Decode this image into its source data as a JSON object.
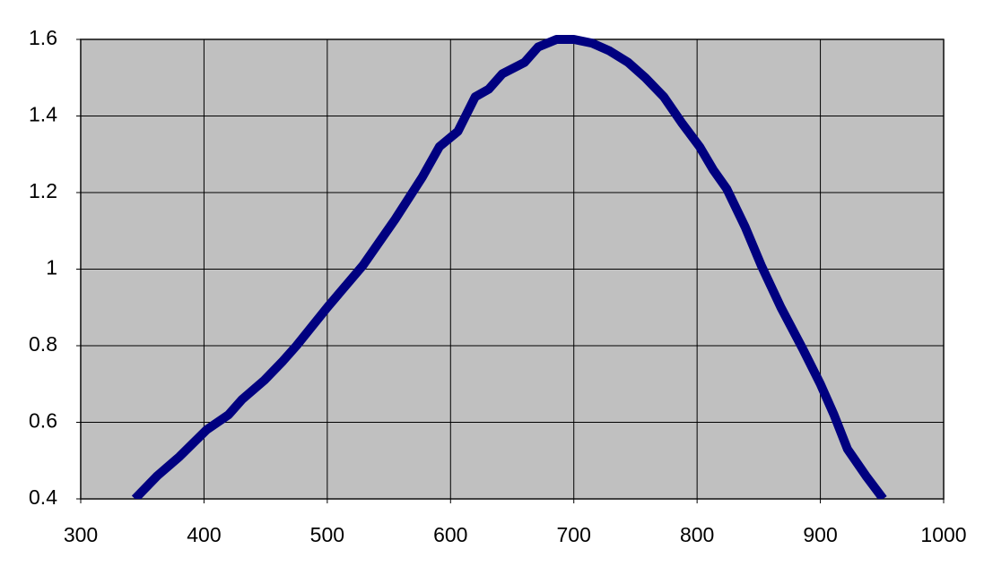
{
  "chart_data": {
    "type": "line",
    "x": [
      344,
      362,
      380,
      402,
      420,
      431,
      449,
      464,
      475,
      500,
      529,
      555,
      577,
      591,
      606,
      620,
      631,
      642,
      660,
      671,
      686,
      700,
      715,
      729,
      744,
      758,
      773,
      788,
      802,
      813,
      824,
      839,
      852,
      868,
      886,
      900,
      911,
      922,
      937,
      951
    ],
    "values": [
      0.4,
      0.46,
      0.51,
      0.58,
      0.62,
      0.66,
      0.71,
      0.76,
      0.8,
      0.9,
      1.01,
      1.13,
      1.24,
      1.32,
      1.36,
      1.45,
      1.47,
      1.51,
      1.54,
      1.58,
      1.6,
      1.6,
      1.59,
      1.57,
      1.54,
      1.5,
      1.45,
      1.38,
      1.32,
      1.26,
      1.21,
      1.11,
      1.01,
      0.9,
      0.79,
      0.7,
      0.62,
      0.53,
      0.46,
      0.4
    ],
    "color": "#000080",
    "xlim": [
      300,
      1000
    ],
    "xticks": [
      300,
      400,
      500,
      600,
      700,
      800,
      900,
      1000
    ],
    "ylim": [
      0.4,
      1.6
    ],
    "yticks": [
      0.4,
      0.6,
      0.8,
      1,
      1.2,
      1.4,
      1.6
    ],
    "grid": true
  }
}
